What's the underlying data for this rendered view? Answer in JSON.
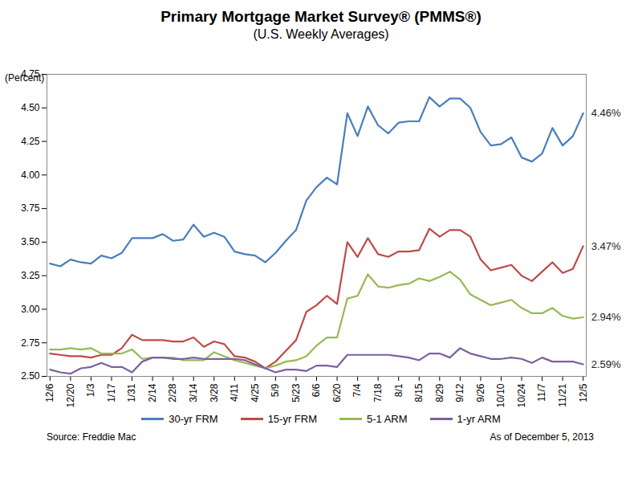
{
  "chart_data": {
    "type": "line",
    "title": "Primary Mortgage Market Survey® (PMMS®)",
    "subtitle": "(U.S. Weekly Averages)",
    "y_label": "(Percent)",
    "source": "Source: Freddie Mac",
    "note": "As of December 5, 2013",
    "categories": [
      "12/6",
      null,
      "12/20",
      null,
      "1/3",
      null,
      "1/17",
      null,
      "1/31",
      null,
      "2/14",
      null,
      "2/28",
      null,
      "3/14",
      null,
      "3/28",
      null,
      "4/11",
      null,
      "4/25",
      null,
      "5/9",
      null,
      "5/23",
      null,
      "6/6",
      null,
      "6/20",
      null,
      "7/4",
      null,
      "7/18",
      null,
      "8/1",
      null,
      "8/15",
      null,
      "8/29",
      null,
      "9/12",
      null,
      "9/26",
      null,
      "10/10",
      null,
      "10/24",
      null,
      "11/7",
      null,
      "11/21",
      null,
      "12/5"
    ],
    "series": [
      {
        "name": "30-yr FRM",
        "color": "#4a7ebb",
        "values": [
          3.34,
          3.32,
          3.37,
          3.35,
          3.34,
          3.4,
          3.38,
          3.42,
          3.53,
          3.53,
          3.53,
          3.56,
          3.51,
          3.52,
          3.63,
          3.54,
          3.57,
          3.54,
          3.43,
          3.41,
          3.4,
          3.35,
          3.42,
          3.51,
          3.59,
          3.81,
          3.91,
          3.98,
          3.93,
          4.46,
          4.29,
          4.51,
          4.37,
          4.31,
          4.39,
          4.4,
          4.4,
          4.58,
          4.51,
          4.57,
          4.57,
          4.5,
          4.32,
          4.22,
          4.23,
          4.28,
          4.13,
          4.1,
          4.16,
          4.35,
          4.22,
          4.29,
          4.46
        ]
      },
      {
        "name": "15-yr FRM",
        "color": "#be4b48",
        "values": [
          2.67,
          2.66,
          2.65,
          2.65,
          2.64,
          2.66,
          2.66,
          2.71,
          2.81,
          2.77,
          2.77,
          2.77,
          2.76,
          2.76,
          2.79,
          2.72,
          2.76,
          2.74,
          2.65,
          2.64,
          2.61,
          2.56,
          2.61,
          2.69,
          2.77,
          2.98,
          3.03,
          3.1,
          3.04,
          3.5,
          3.39,
          3.53,
          3.41,
          3.39,
          3.43,
          3.43,
          3.44,
          3.6,
          3.54,
          3.59,
          3.59,
          3.54,
          3.37,
          3.29,
          3.31,
          3.33,
          3.25,
          3.21,
          3.28,
          3.35,
          3.27,
          3.3,
          3.47
        ]
      },
      {
        "name": "5-1 ARM",
        "color": "#98b954",
        "values": [
          2.7,
          2.7,
          2.71,
          2.7,
          2.71,
          2.67,
          2.67,
          2.67,
          2.7,
          2.63,
          2.64,
          2.64,
          2.64,
          2.62,
          2.62,
          2.62,
          2.68,
          2.65,
          2.62,
          2.6,
          2.58,
          2.56,
          2.58,
          2.61,
          2.62,
          2.65,
          2.73,
          2.79,
          2.79,
          3.08,
          3.1,
          3.26,
          3.17,
          3.16,
          3.18,
          3.19,
          3.23,
          3.21,
          3.24,
          3.28,
          3.22,
          3.11,
          3.07,
          3.03,
          3.05,
          3.07,
          3.01,
          2.97,
          2.97,
          3.01,
          2.95,
          2.93,
          2.94
        ]
      },
      {
        "name": "1-yr ARM",
        "color": "#7d60a0",
        "values": [
          2.55,
          2.53,
          2.52,
          2.56,
          2.57,
          2.6,
          2.57,
          2.57,
          2.53,
          2.61,
          2.64,
          2.64,
          2.63,
          2.63,
          2.64,
          2.63,
          2.63,
          2.63,
          2.63,
          2.62,
          2.59,
          2.56,
          2.53,
          2.55,
          2.55,
          2.54,
          2.58,
          2.58,
          2.57,
          2.66,
          2.66,
          2.66,
          2.66,
          2.66,
          2.65,
          2.64,
          2.62,
          2.67,
          2.67,
          2.64,
          2.71,
          2.67,
          2.65,
          2.63,
          2.63,
          2.64,
          2.63,
          2.6,
          2.64,
          2.61,
          2.61,
          2.61,
          2.59
        ]
      }
    ],
    "annotations": [
      {
        "series": "30-yr FRM",
        "text": "4.46%"
      },
      {
        "series": "15-yr FRM",
        "text": "3.47%"
      },
      {
        "series": "5-1 ARM",
        "text": "2.94%"
      },
      {
        "series": "1-yr ARM",
        "text": "2.59%"
      }
    ],
    "ylim": [
      2.5,
      4.75
    ],
    "yticks": [
      {
        "value": 2.5,
        "label": "2.50"
      },
      2.75,
      {
        "value": 3,
        "label": "3.00"
      },
      3.25,
      {
        "value": 3.5,
        "label": "3.50"
      },
      3.75,
      {
        "value": 4,
        "label": "4.00"
      },
      4.25,
      {
        "value": 4.5,
        "label": "4.50"
      },
      4.75
    ],
    "grid": false,
    "legend": "bottom"
  }
}
